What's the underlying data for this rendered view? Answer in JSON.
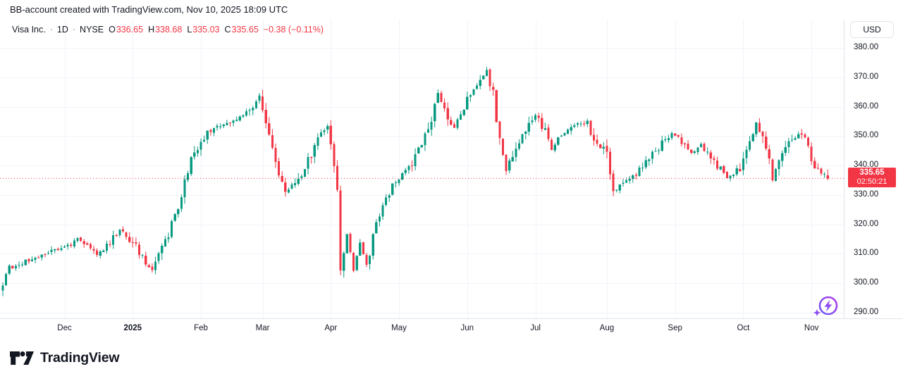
{
  "attribution": "BB-account created with TradingView.com, Nov 10, 2025 18:09 UTC",
  "legend": {
    "symbol": "Visa Inc.",
    "separator": "·",
    "interval": "1D",
    "exchange": "NYSE",
    "ohlc": [
      {
        "label": "O",
        "value": "336.65"
      },
      {
        "label": "H",
        "value": "338.68"
      },
      {
        "label": "L",
        "value": "335.03"
      },
      {
        "label": "C",
        "value": "335.65"
      }
    ],
    "change": "−0.38 (−0.11%)"
  },
  "price_axis": {
    "currency_button": "USD",
    "last_price_label": "335.65",
    "countdown": "02:50:21"
  },
  "footer": {
    "brand": "TradingView"
  },
  "colors": {
    "up": "#089981",
    "down": "#f23645",
    "grid": "#f0f3fa",
    "axis_border": "#e0e3eb",
    "axis_text": "#131722",
    "last_price_line": "#f23645",
    "boost_gradient_from": "#6a5af9",
    "boost_gradient_to": "#b13be6"
  },
  "chart_data": {
    "type": "candlestick",
    "symbol": "Visa Inc.",
    "exchange": "NYSE",
    "interval": "1D",
    "currency": "USD",
    "visible_range": {
      "from": "Nov 2024",
      "to": "Nov 10, 2025"
    },
    "y_range": [
      288,
      389
    ],
    "price_step": 10,
    "grid": true,
    "price_ticks": [
      {
        "value": 380,
        "label": "380.00"
      },
      {
        "value": 370,
        "label": "370.00"
      },
      {
        "value": 360,
        "label": "360.00"
      },
      {
        "value": 350,
        "label": "350.00"
      },
      {
        "value": 340,
        "label": "340.00"
      },
      {
        "value": 330,
        "label": "330.00"
      },
      {
        "value": 320,
        "label": "320.00"
      },
      {
        "value": 310,
        "label": "310.00"
      },
      {
        "value": 300,
        "label": "300.00"
      },
      {
        "value": 290,
        "label": "290.00"
      }
    ],
    "time_labels": [
      {
        "text": "Dec",
        "bar": 19,
        "bold": false
      },
      {
        "text": "2025",
        "bar": 40,
        "bold": true
      },
      {
        "text": "Feb",
        "bar": 61,
        "bold": false
      },
      {
        "text": "Mar",
        "bar": 80,
        "bold": false
      },
      {
        "text": "Apr",
        "bar": 101,
        "bold": false
      },
      {
        "text": "May",
        "bar": 122,
        "bold": false
      },
      {
        "text": "Jun",
        "bar": 143,
        "bold": false
      },
      {
        "text": "Jul",
        "bar": 164,
        "bold": false
      },
      {
        "text": "Aug",
        "bar": 186,
        "bold": false
      },
      {
        "text": "Sep",
        "bar": 207,
        "bold": false
      },
      {
        "text": "Oct",
        "bar": 228,
        "bold": false
      },
      {
        "text": "Nov",
        "bar": 249,
        "bold": false
      }
    ],
    "bars_total": 255,
    "last_bar": {
      "open": 336.65,
      "high": 338.68,
      "low": 335.03,
      "close": 335.65
    },
    "change": -0.38,
    "change_pct": -0.11,
    "price_line": {
      "value": 335.65,
      "label": "335.65",
      "countdown": "02:50:21"
    },
    "first_bar": {
      "open": 297.5,
      "high": 300.3,
      "low": 295.6,
      "close": 299.2
    },
    "approx_close_anchors": [
      [
        0,
        298
      ],
      [
        1,
        304
      ],
      [
        6,
        307
      ],
      [
        11,
        309
      ],
      [
        15,
        311
      ],
      [
        19,
        312
      ],
      [
        23,
        315
      ],
      [
        26,
        313
      ],
      [
        29,
        310
      ],
      [
        33,
        314
      ],
      [
        36,
        318
      ],
      [
        38,
        316
      ],
      [
        40,
        314
      ],
      [
        43,
        309
      ],
      [
        46,
        304
      ],
      [
        48,
        309
      ],
      [
        52,
        320
      ],
      [
        54,
        327
      ],
      [
        56,
        334
      ],
      [
        58,
        342
      ],
      [
        61,
        349
      ],
      [
        64,
        352
      ],
      [
        68,
        354
      ],
      [
        72,
        356
      ],
      [
        76,
        358
      ],
      [
        78,
        362
      ],
      [
        79,
        365
      ],
      [
        81,
        353
      ],
      [
        83,
        345
      ],
      [
        85,
        337
      ],
      [
        87,
        331
      ],
      [
        89,
        333
      ],
      [
        92,
        337
      ],
      [
        95,
        344
      ],
      [
        98,
        351
      ],
      [
        100,
        352
      ],
      [
        101,
        347
      ],
      [
        103,
        330
      ],
      [
        104,
        303
      ],
      [
        106,
        317
      ],
      [
        108,
        304
      ],
      [
        110,
        314
      ],
      [
        112,
        306
      ],
      [
        114,
        316
      ],
      [
        116,
        322
      ],
      [
        118,
        328
      ],
      [
        120,
        333
      ],
      [
        122,
        335
      ],
      [
        124,
        338
      ],
      [
        127,
        343
      ],
      [
        130,
        350
      ],
      [
        132,
        356
      ],
      [
        134,
        364
      ],
      [
        136,
        358
      ],
      [
        139,
        353
      ],
      [
        142,
        360
      ],
      [
        145,
        365
      ],
      [
        147,
        368
      ],
      [
        149,
        372
      ],
      [
        151,
        365
      ],
      [
        153,
        348
      ],
      [
        155,
        339
      ],
      [
        157,
        344
      ],
      [
        160,
        350
      ],
      [
        164,
        357
      ],
      [
        166,
        354
      ],
      [
        169,
        346
      ],
      [
        172,
        350
      ],
      [
        175,
        352
      ],
      [
        177,
        355
      ],
      [
        180,
        354
      ],
      [
        182,
        350
      ],
      [
        184,
        346
      ],
      [
        186,
        344
      ],
      [
        188,
        331
      ],
      [
        191,
        334
      ],
      [
        194,
        336
      ],
      [
        197,
        340
      ],
      [
        201,
        345
      ],
      [
        204,
        349
      ],
      [
        206,
        351
      ],
      [
        209,
        348
      ],
      [
        212,
        344
      ],
      [
        215,
        347
      ],
      [
        218,
        343
      ],
      [
        221,
        339
      ],
      [
        223,
        336
      ],
      [
        225,
        337
      ],
      [
        227,
        339
      ],
      [
        229,
        344
      ],
      [
        231,
        352
      ],
      [
        232,
        355
      ],
      [
        234,
        350
      ],
      [
        236,
        343
      ],
      [
        237,
        336
      ],
      [
        239,
        341
      ],
      [
        242,
        347
      ],
      [
        244,
        350
      ],
      [
        246,
        351
      ],
      [
        248,
        345
      ],
      [
        250,
        340
      ],
      [
        252,
        337.8
      ],
      [
        254,
        335.65
      ]
    ],
    "seed": 20251110
  }
}
